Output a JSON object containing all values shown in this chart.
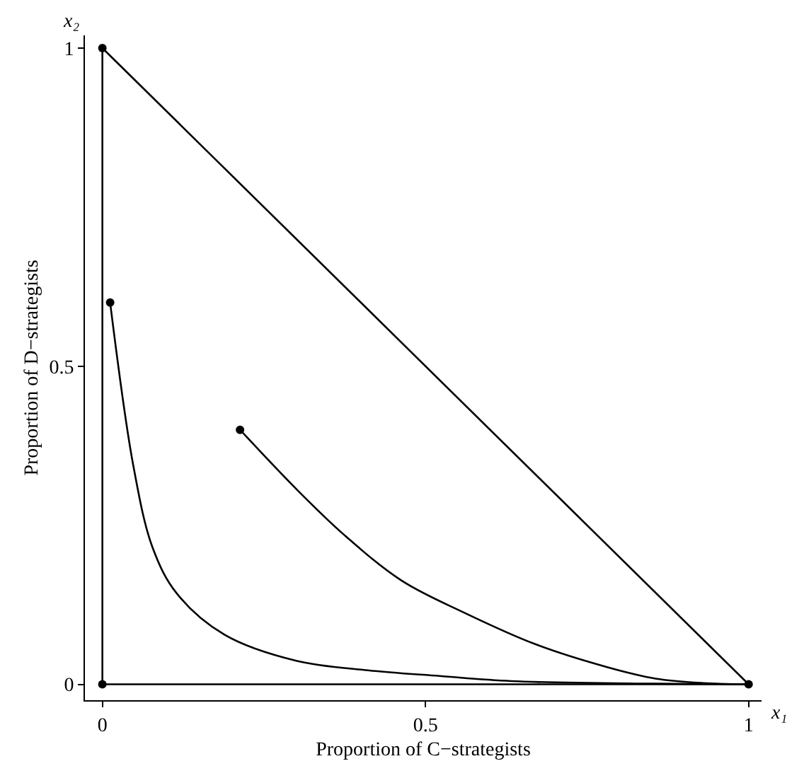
{
  "chart_data": {
    "type": "line",
    "xlabel": "Proportion of C−strategists",
    "ylabel": "Proportion of D−strategists",
    "annotations": [
      "x₁",
      "x₂"
    ],
    "xlim": [
      -0.027,
      1.02
    ],
    "ylim": [
      -0.025,
      1.02
    ],
    "xticks": [
      0,
      0.5,
      1
    ],
    "yticks": [
      0,
      0.5,
      1
    ],
    "marker": "none",
    "line_style": "solid",
    "series": [
      {
        "color": "#000000",
        "x": [
          0,
          1
        ],
        "values": [
          1,
          0
        ]
      },
      {
        "color": "#000000",
        "x": [
          0,
          0
        ],
        "values": [
          1,
          0
        ]
      },
      {
        "color": "#000000",
        "x": [
          0,
          1
        ],
        "values": [
          0,
          0
        ]
      },
      {
        "color": "#000000",
        "x": [
          0.012,
          0.048,
          0.078,
          0.115,
          0.189,
          0.3,
          0.411,
          0.522,
          0.633,
          0.856,
          1
        ],
        "values": [
          0.6,
          0.343,
          0.214,
          0.143,
          0.078,
          0.037,
          0.022,
          0.013,
          0.005,
          0.001,
          0
        ]
      },
      {
        "color": "#000000",
        "x": [
          0.213,
          0.3,
          0.374,
          0.463,
          0.559,
          0.67,
          0.781,
          0.856,
          0.93,
          1
        ],
        "values": [
          0.4,
          0.307,
          0.235,
          0.163,
          0.113,
          0.063,
          0.027,
          0.009,
          0.002,
          0
        ]
      },
      {
        "type": "scatter",
        "marker": "circle",
        "color": "#000000",
        "x": [
          0,
          0,
          1,
          0.012,
          0.213
        ],
        "values": [
          1,
          0,
          0,
          0.6,
          0.4
        ]
      }
    ]
  }
}
